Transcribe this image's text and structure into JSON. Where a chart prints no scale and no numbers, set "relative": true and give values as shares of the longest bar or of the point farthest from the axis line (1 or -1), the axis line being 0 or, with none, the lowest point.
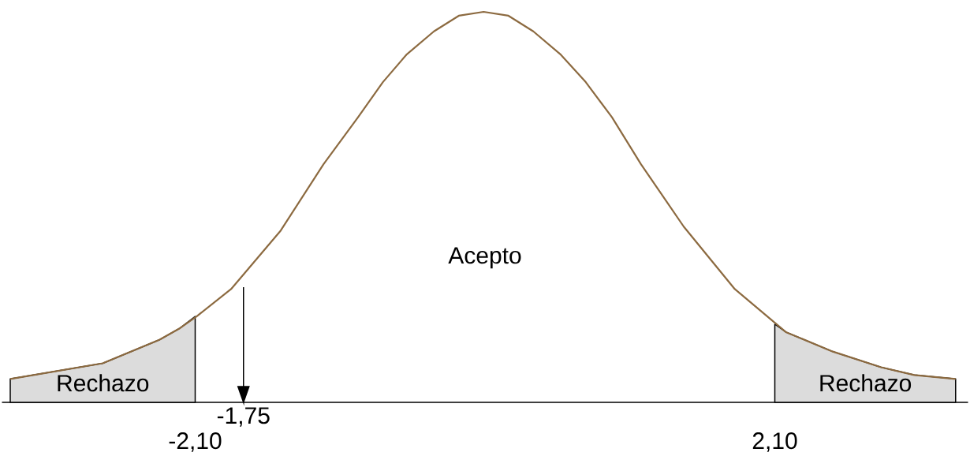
{
  "chart_data": {
    "type": "line",
    "relative": true,
    "marker": "none",
    "line_style": "solid",
    "series": [
      {
        "type": "area",
        "name": "Rechazo",
        "color": "#dcdcdc",
        "x": [
          -3.44,
          -2.77,
          -2.36,
          -2.21,
          -2.1
        ],
        "values": [
          0.06,
          0.1,
          0.16,
          0.19,
          0.22
        ]
      },
      {
        "type": "area",
        "name": "Rechazo",
        "color": "#dcdcdc",
        "x": [
          2.1,
          2.18,
          2.52,
          2.87,
          3.11,
          3.41
        ],
        "values": [
          0.2,
          0.18,
          0.13,
          0.09,
          0.07,
          0.06
        ]
      },
      {
        "color": "#8c6a40",
        "x": [
          -3.44,
          -2.77,
          -2.36,
          -2.21,
          -2.09,
          -1.84,
          -1.48,
          -1.17,
          -0.92,
          -0.74,
          -0.57,
          -0.37,
          -0.19,
          -0.01,
          0.17,
          0.35,
          0.55,
          0.73,
          0.92,
          1.13,
          1.44,
          1.81,
          2.18,
          2.52,
          2.87,
          3.11,
          3.41
        ],
        "values": [
          0.06,
          0.1,
          0.16,
          0.19,
          0.22,
          0.29,
          0.44,
          0.61,
          0.73,
          0.82,
          0.89,
          0.95,
          0.99,
          1,
          0.99,
          0.95,
          0.89,
          0.82,
          0.73,
          0.61,
          0.45,
          0.29,
          0.18,
          0.13,
          0.09,
          0.07,
          0.06
        ]
      }
    ],
    "xlim": [
      -3.5,
      3.5
    ],
    "xticks": [
      {
        "value": -2.1,
        "label": "-2,10"
      },
      {
        "value": 2.1,
        "label": "2,10"
      }
    ],
    "ref_lines": [
      {
        "axis": "x",
        "value": -1.75,
        "label": "-1,75",
        "color": "#000000"
      }
    ],
    "annotations": [
      "Acepto"
    ]
  }
}
